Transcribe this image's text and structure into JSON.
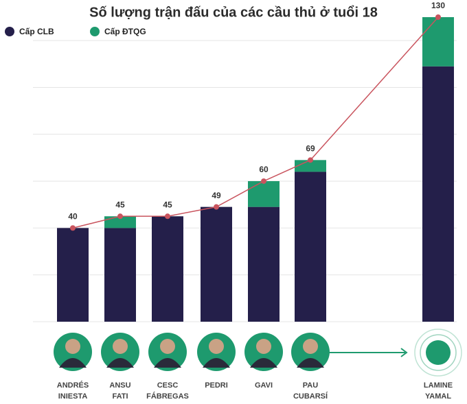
{
  "chart_data": {
    "type": "bar",
    "title": "Số lượng trận đấu của các cầu thủ ở tuổi 18",
    "categories": [
      [
        "ANDRÉS",
        "INIESTA"
      ],
      [
        "ANSU",
        "FATI"
      ],
      [
        "CESC",
        "FÁBREGAS"
      ],
      [
        "PEDRI"
      ],
      [
        "GAVI"
      ],
      [
        "PAU",
        "CUBARSÍ"
      ],
      [
        "LAMINE",
        "YAMAL"
      ]
    ],
    "series": [
      {
        "name": "Cấp CLB",
        "color": "#241f4a",
        "values": [
          40,
          40,
          45,
          49,
          49,
          64,
          109
        ]
      },
      {
        "name": "Cấp ĐTQG",
        "color": "#1e9a6e",
        "values": [
          0,
          5,
          0,
          0,
          11,
          5,
          21
        ]
      }
    ],
    "line": {
      "color": "#c9545e",
      "values": [
        40,
        45,
        45,
        49,
        60,
        69,
        130
      ]
    },
    "ylim": [
      0,
      130
    ],
    "yticks": [
      0,
      20,
      40,
      60,
      80,
      100,
      120
    ],
    "grid": true
  }
}
